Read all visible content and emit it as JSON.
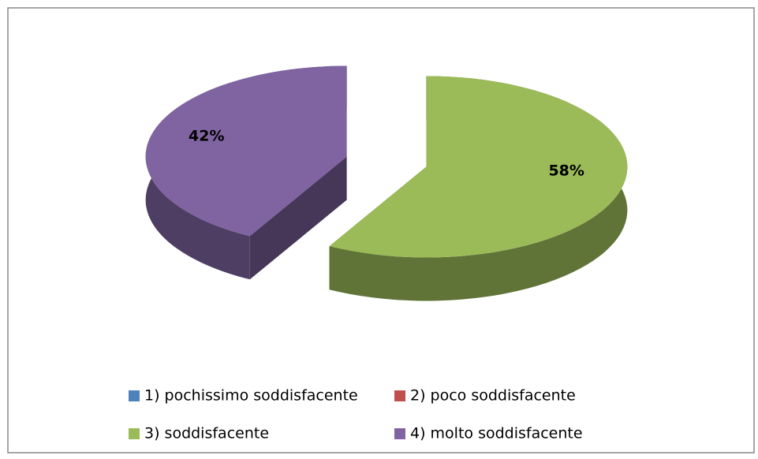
{
  "chart_data": {
    "type": "pie3d",
    "categories": [
      "1) pochissimo soddisfacente",
      "2) poco soddisfacente",
      "3) soddisfacente",
      "4) molto soddisfacente"
    ],
    "values": [
      0,
      0,
      58,
      42
    ],
    "value_labels": [
      null,
      null,
      "58%",
      "42%"
    ],
    "colors": [
      "#4f81bd",
      "#c0504d",
      "#9bbb59",
      "#8064a2"
    ],
    "legend": "bottom"
  }
}
